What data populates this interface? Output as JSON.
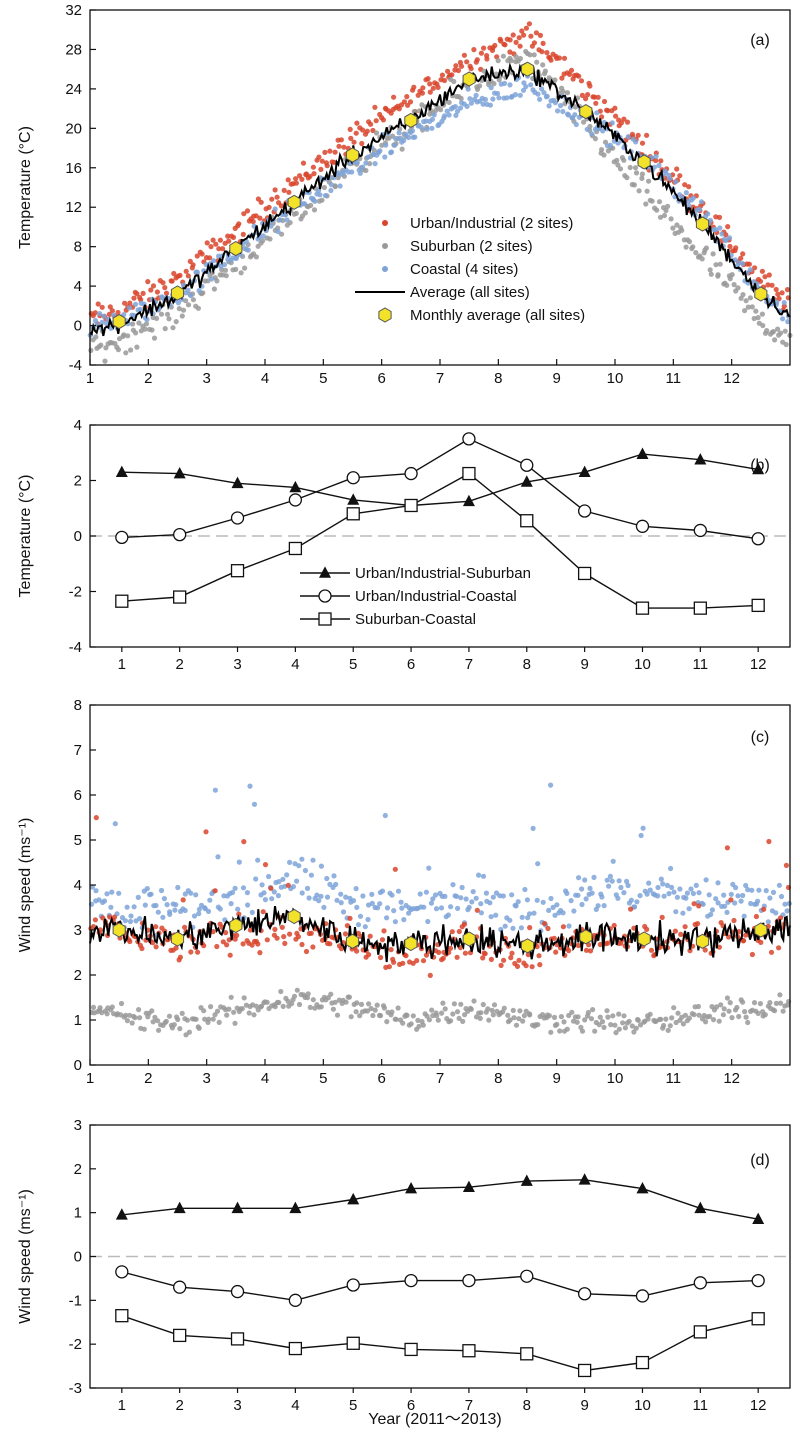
{
  "figure": {
    "xlabel_bottom": "Year (2011～2013)"
  },
  "chart_data": [
    {
      "panel": "(a)",
      "type": "scatter",
      "ylabel": "Temperature (°C)",
      "xlim": [
        1,
        13
      ],
      "ylim": [
        -4,
        32
      ],
      "xticks": [
        1,
        2,
        3,
        4,
        5,
        6,
        7,
        8,
        9,
        10,
        11,
        12
      ],
      "yticks": [
        -4,
        0,
        4,
        8,
        12,
        16,
        20,
        24,
        28,
        32
      ],
      "grid": false,
      "legend_position": "center-right",
      "series": [
        {
          "name": "Urban/Industrial (2 sites)",
          "kind": "points",
          "color": "#d9442c",
          "monthly_center": [
            1.5,
            4.5,
            9.5,
            14.5,
            19.0,
            23.0,
            27.0,
            29.5,
            24.0,
            18.0,
            12.0,
            4.5
          ],
          "spread": 2.0
        },
        {
          "name": "Suburban (2 sites)",
          "kind": "points",
          "color": "#999999",
          "monthly_center": [
            -1.5,
            1.5,
            6.5,
            11.0,
            16.5,
            20.0,
            24.5,
            27.0,
            20.5,
            13.5,
            7.0,
            0.5
          ],
          "spread": 2.2
        },
        {
          "name": "Coastal (4 sites)",
          "kind": "points",
          "color": "#7ea3d8",
          "monthly_center": [
            0.5,
            3.0,
            7.5,
            12.0,
            16.0,
            19.5,
            22.5,
            24.5,
            21.0,
            17.0,
            11.5,
            3.5
          ],
          "spread": 1.8
        },
        {
          "name": "Average (all sites)",
          "kind": "line",
          "color": "#000000",
          "monthly_center": [
            0.2,
            3.0,
            7.8,
            12.5,
            17.3,
            20.8,
            25.0,
            26.0,
            21.7,
            16.6,
            10.3,
            3.2
          ],
          "spread": 1.2
        },
        {
          "name": "Monthly average (all sites)",
          "kind": "marker",
          "color": "#f2e22a",
          "x": [
            1.5,
            2.5,
            3.5,
            4.5,
            5.5,
            6.5,
            7.5,
            8.5,
            9.5,
            10.5,
            11.5,
            12.5
          ],
          "y": [
            0.4,
            3.3,
            7.8,
            12.5,
            17.3,
            20.8,
            25.0,
            26.0,
            21.7,
            16.6,
            10.3,
            3.2
          ]
        }
      ]
    },
    {
      "panel": "(b)",
      "type": "line",
      "ylabel": "Temperature (°C)",
      "categories": [
        1,
        2,
        3,
        4,
        5,
        6,
        7,
        8,
        9,
        10,
        11,
        12
      ],
      "ylim": [
        -4,
        4
      ],
      "yticks": [
        -4,
        -2,
        0,
        2,
        4
      ],
      "zero_line": true,
      "legend_position": "bottom-center",
      "series": [
        {
          "name": "Urban/Industrial-Suburban",
          "marker": "triangle",
          "values": [
            2.3,
            2.25,
            1.9,
            1.75,
            1.3,
            1.1,
            1.25,
            1.95,
            2.3,
            2.95,
            2.75,
            2.4
          ]
        },
        {
          "name": "Urban/Industrial-Coastal",
          "marker": "circle",
          "values": [
            -0.05,
            0.05,
            0.65,
            1.3,
            2.1,
            2.25,
            3.5,
            2.55,
            0.9,
            0.35,
            0.2,
            -0.1
          ]
        },
        {
          "name": "Suburban-Coastal",
          "marker": "square",
          "values": [
            -2.35,
            -2.2,
            -1.25,
            -0.45,
            0.8,
            1.1,
            2.25,
            0.55,
            -1.35,
            -2.6,
            -2.6,
            -2.5
          ]
        }
      ]
    },
    {
      "panel": "(c)",
      "type": "scatter",
      "ylabel": "Wind speed (ms⁻¹)",
      "xlim": [
        1,
        13
      ],
      "ylim": [
        0,
        8
      ],
      "xticks": [
        1,
        2,
        3,
        4,
        5,
        6,
        7,
        8,
        9,
        10,
        11,
        12
      ],
      "yticks": [
        0,
        1,
        2,
        3,
        4,
        5,
        6,
        7,
        8
      ],
      "grid": false,
      "series": [
        {
          "name": "Coastal",
          "kind": "points",
          "color": "#7ea3d8",
          "monthly_center": [
            3.6,
            3.4,
            3.8,
            4.2,
            3.6,
            3.4,
            3.9,
            3.3,
            3.9,
            3.8,
            3.7,
            3.6
          ],
          "spread": 0.8
        },
        {
          "name": "Urban/Industrial",
          "kind": "points",
          "color": "#d9442c",
          "monthly_center": [
            3.0,
            2.7,
            2.9,
            3.0,
            2.6,
            2.4,
            2.8,
            2.5,
            2.8,
            2.8,
            2.8,
            3.0
          ],
          "spread": 0.6
        },
        {
          "name": "Suburban",
          "kind": "points",
          "color": "#999999",
          "monthly_center": [
            1.1,
            0.9,
            1.2,
            1.5,
            1.3,
            1.0,
            1.3,
            1.0,
            1.0,
            0.9,
            1.1,
            1.3
          ],
          "spread": 0.4
        },
        {
          "name": "Average",
          "kind": "line",
          "color": "#000000",
          "monthly_center": [
            3.0,
            2.8,
            3.1,
            3.3,
            2.75,
            2.7,
            2.8,
            2.65,
            2.85,
            2.8,
            2.75,
            3.0
          ],
          "spread": 0.5
        },
        {
          "name": "Monthly average",
          "kind": "marker",
          "color": "#f2e22a",
          "x": [
            1.5,
            2.5,
            3.5,
            4.5,
            5.5,
            6.5,
            7.5,
            8.5,
            9.5,
            10.5,
            11.5,
            12.5
          ],
          "y": [
            3.0,
            2.8,
            3.1,
            3.3,
            2.75,
            2.7,
            2.8,
            2.65,
            2.85,
            2.8,
            2.75,
            3.0
          ]
        }
      ]
    },
    {
      "panel": "(d)",
      "type": "line",
      "ylabel": "Wind speed (ms⁻¹)",
      "xlabel": "Year (2011～2013)",
      "categories": [
        1,
        2,
        3,
        4,
        5,
        6,
        7,
        8,
        9,
        10,
        11,
        12
      ],
      "ylim": [
        -3,
        3
      ],
      "yticks": [
        -3,
        -2,
        -1,
        0,
        1,
        2,
        3
      ],
      "zero_line": true,
      "series": [
        {
          "name": "Urban/Industrial-Suburban",
          "marker": "triangle",
          "values": [
            0.95,
            1.1,
            1.1,
            1.1,
            1.3,
            1.55,
            1.58,
            1.72,
            1.75,
            1.55,
            1.1,
            0.85
          ]
        },
        {
          "name": "Urban/Industrial-Coastal",
          "marker": "circle",
          "values": [
            -0.35,
            -0.7,
            -0.8,
            -1.0,
            -0.65,
            -0.55,
            -0.55,
            -0.45,
            -0.85,
            -0.9,
            -0.6,
            -0.55
          ]
        },
        {
          "name": "Suburban-Coastal",
          "marker": "square",
          "values": [
            -1.35,
            -1.8,
            -1.88,
            -2.1,
            -1.98,
            -2.12,
            -2.15,
            -2.22,
            -2.6,
            -2.42,
            -1.72,
            -1.42
          ]
        }
      ]
    }
  ]
}
